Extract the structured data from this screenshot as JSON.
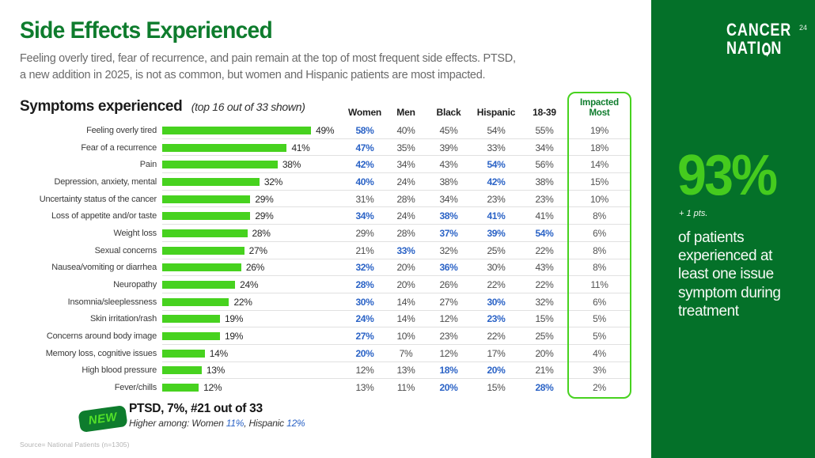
{
  "slide": {
    "title": "Side Effects Experienced",
    "subtitle": "Feeling overly tired, fear of recurrence, and pain remain at the top of most frequent side effects. PTSD,\na new addition in 2025, is not as common, but women and Hispanic patients are most impacted.",
    "source": "Source= National Patients (n=1305)"
  },
  "chart_heading": {
    "title": "Symptoms experienced",
    "note": "(top 16 out of 33 shown)"
  },
  "columns": [
    "Women",
    "Men",
    "Black",
    "Hispanic",
    "18-39"
  ],
  "impacted_header": "Impacted Most",
  "chart_data": {
    "type": "bar",
    "orientation": "horizontal",
    "title": "Symptoms experienced (top 16 out of 33 shown)",
    "value_unit": "%",
    "xlim": [
      0,
      60
    ],
    "highlight_note": "hl = value shown in blue bold in original",
    "columns": [
      "Women",
      "Men",
      "Black",
      "Hispanic",
      "18-39",
      "Impacted Most"
    ],
    "rows": [
      {
        "label": "Feeling overly tired",
        "total": 49,
        "cells": [
          {
            "v": 58,
            "hl": true
          },
          {
            "v": 40
          },
          {
            "v": 45
          },
          {
            "v": 54
          },
          {
            "v": 55
          }
        ],
        "impacted": 19
      },
      {
        "label": "Fear of a recurrence",
        "total": 41,
        "cells": [
          {
            "v": 47,
            "hl": true
          },
          {
            "v": 35
          },
          {
            "v": 39
          },
          {
            "v": 33
          },
          {
            "v": 34
          }
        ],
        "impacted": 18
      },
      {
        "label": "Pain",
        "total": 38,
        "cells": [
          {
            "v": 42,
            "hl": true
          },
          {
            "v": 34
          },
          {
            "v": 43
          },
          {
            "v": 54,
            "hl": true
          },
          {
            "v": 56
          }
        ],
        "impacted": 14
      },
      {
        "label": "Depression, anxiety, mental",
        "total": 32,
        "cells": [
          {
            "v": 40,
            "hl": true
          },
          {
            "v": 24
          },
          {
            "v": 38
          },
          {
            "v": 42,
            "hl": true
          },
          {
            "v": 38
          }
        ],
        "impacted": 15
      },
      {
        "label": "Uncertainty status of the cancer",
        "total": 29,
        "cells": [
          {
            "v": 31
          },
          {
            "v": 28
          },
          {
            "v": 34
          },
          {
            "v": 23
          },
          {
            "v": 23
          }
        ],
        "impacted": 10
      },
      {
        "label": "Loss of appetite and/or taste",
        "total": 29,
        "cells": [
          {
            "v": 34,
            "hl": true
          },
          {
            "v": 24
          },
          {
            "v": 38,
            "hl": true
          },
          {
            "v": 41,
            "hl": true
          },
          {
            "v": 41
          }
        ],
        "impacted": 8
      },
      {
        "label": "Weight loss",
        "total": 28,
        "cells": [
          {
            "v": 29
          },
          {
            "v": 28
          },
          {
            "v": 37,
            "hl": true
          },
          {
            "v": 39,
            "hl": true
          },
          {
            "v": 54,
            "hl": true
          }
        ],
        "impacted": 6
      },
      {
        "label": "Sexual concerns",
        "total": 27,
        "cells": [
          {
            "v": 21
          },
          {
            "v": 33,
            "hl": true
          },
          {
            "v": 32
          },
          {
            "v": 25
          },
          {
            "v": 22
          }
        ],
        "impacted": 8
      },
      {
        "label": "Nausea/vomiting or diarrhea",
        "total": 26,
        "cells": [
          {
            "v": 32,
            "hl": true
          },
          {
            "v": 20
          },
          {
            "v": 36,
            "hl": true
          },
          {
            "v": 30
          },
          {
            "v": 43
          }
        ],
        "impacted": 8
      },
      {
        "label": "Neuropathy",
        "total": 24,
        "cells": [
          {
            "v": 28,
            "hl": true
          },
          {
            "v": 20
          },
          {
            "v": 26
          },
          {
            "v": 22
          },
          {
            "v": 22
          }
        ],
        "impacted": 11
      },
      {
        "label": "Insomnia/sleeplessness",
        "total": 22,
        "cells": [
          {
            "v": 30,
            "hl": true
          },
          {
            "v": 14
          },
          {
            "v": 27
          },
          {
            "v": 30,
            "hl": true
          },
          {
            "v": 32
          }
        ],
        "impacted": 6
      },
      {
        "label": "Skin irritation/rash",
        "total": 19,
        "cells": [
          {
            "v": 24,
            "hl": true
          },
          {
            "v": 14
          },
          {
            "v": 12
          },
          {
            "v": 23,
            "hl": true
          },
          {
            "v": 15
          }
        ],
        "impacted": 5
      },
      {
        "label": "Concerns around body image",
        "total": 19,
        "cells": [
          {
            "v": 27,
            "hl": true
          },
          {
            "v": 10
          },
          {
            "v": 23
          },
          {
            "v": 22
          },
          {
            "v": 25
          }
        ],
        "impacted": 5
      },
      {
        "label": "Memory loss, cognitive issues",
        "total": 14,
        "cells": [
          {
            "v": 20,
            "hl": true
          },
          {
            "v": 7
          },
          {
            "v": 12
          },
          {
            "v": 17
          },
          {
            "v": 20
          }
        ],
        "impacted": 4
      },
      {
        "label": "High blood pressure",
        "total": 13,
        "cells": [
          {
            "v": 12
          },
          {
            "v": 13
          },
          {
            "v": 18,
            "hl": true
          },
          {
            "v": 20,
            "hl": true
          },
          {
            "v": 21
          }
        ],
        "impacted": 3
      },
      {
        "label": "Fever/chills",
        "total": 12,
        "cells": [
          {
            "v": 13
          },
          {
            "v": 11
          },
          {
            "v": 20,
            "hl": true
          },
          {
            "v": 15
          },
          {
            "v": 28,
            "hl": true
          }
        ],
        "impacted": 2
      }
    ]
  },
  "ptsd_note": {
    "badge": "NEW",
    "title": "PTSD, 7%, #21 out of 33",
    "sub_prefix": "Higher among: Women ",
    "women_value": "11%",
    "sub_mid": ", Hispanic ",
    "hispanic_value": "12%"
  },
  "panel": {
    "logo_line1": "CANCER",
    "logo_line2_pre": "NATI",
    "logo_line2_post": "N",
    "page_number": "24",
    "stat": "93%",
    "delta": "+ 1 pts.",
    "description": "of patients experienced at least one issue symptom during treatment"
  },
  "colors": {
    "bar_green": "#47d21f",
    "dark_green": "#0e7c2d",
    "panel_green": "#047129",
    "stat_green": "#45cb1e",
    "highlight_blue": "#2b63c6",
    "badge_text_green": "#53e129"
  }
}
